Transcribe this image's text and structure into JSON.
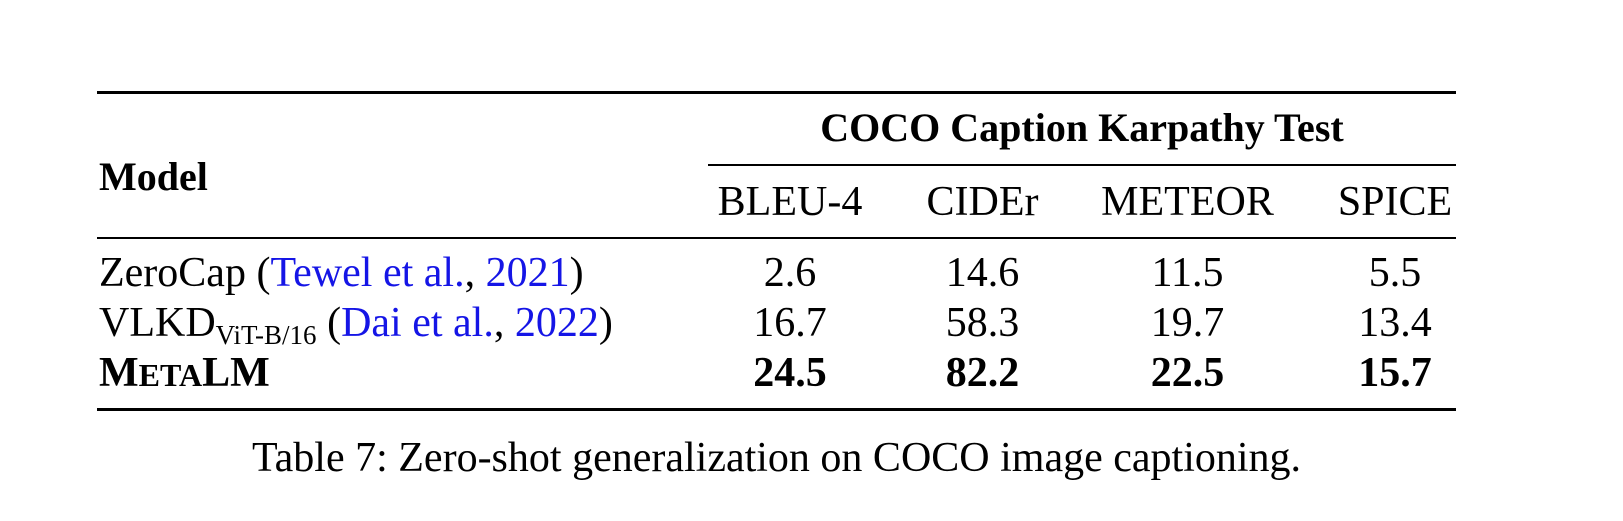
{
  "table": {
    "model_header": "Model",
    "group_header": "COCO Caption Karpathy Test",
    "columns": [
      "BLEU-4",
      "CIDEr",
      "METEOR",
      "SPICE"
    ],
    "rows": [
      {
        "model": "ZeroCap",
        "citation_open": "(",
        "citation_author": "Tewel et al.",
        "citation_sep": ", ",
        "citation_year": "2021",
        "citation_close": ")",
        "values": [
          "2.6",
          "14.6",
          "11.5",
          "5.5"
        ]
      },
      {
        "model": "VLKD",
        "model_subscript": "ViT-B/16",
        "citation_open": "(",
        "citation_author": "Dai et al.",
        "citation_sep": ", ",
        "citation_year": "2022",
        "citation_close": ")",
        "values": [
          "16.7",
          "58.3",
          "19.7",
          "13.4"
        ]
      },
      {
        "model_parts": [
          "M",
          "ETA",
          "LM"
        ],
        "model": "METALM",
        "values": [
          "24.5",
          "82.2",
          "22.5",
          "15.7"
        ]
      }
    ]
  },
  "caption": "Table 7: Zero-shot generalization on COCO image captioning.",
  "colors": {
    "citation": "#1515e6",
    "text": "#000000"
  }
}
